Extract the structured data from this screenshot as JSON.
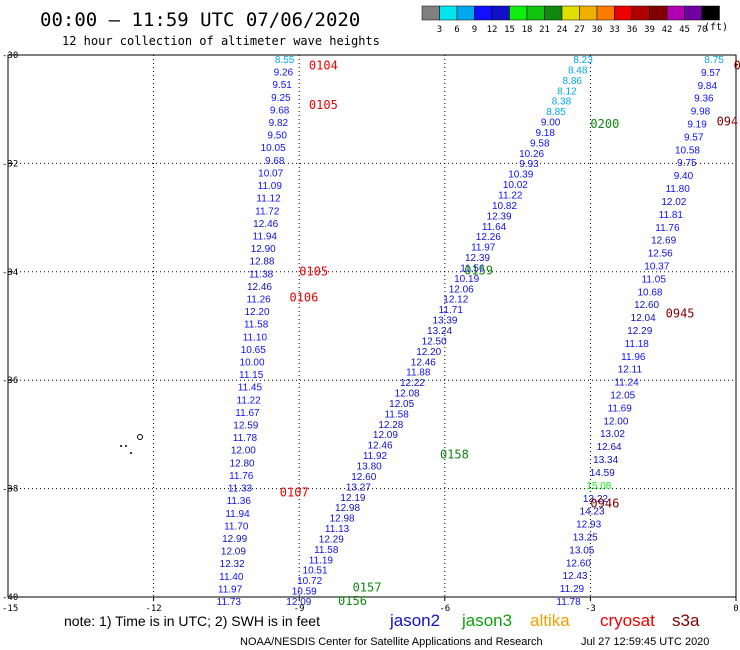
{
  "header": {
    "title": "00:00 – 11:59 UTC 07/06/2020",
    "subtitle": "12 hour collection of altimeter wave heights",
    "units": "(ft)"
  },
  "colorbar": {
    "colors": [
      "#808080",
      "#00e5ee",
      "#00a8f0",
      "#1010ff",
      "#1010c8",
      "#10ee10",
      "#10c410",
      "#108810",
      "#e0e000",
      "#f0b000",
      "#ff7a00",
      "#ee0000",
      "#b00000",
      "#800000",
      "#b000b0",
      "#7000a0",
      "#000000"
    ],
    "ticks": [
      "3",
      "6",
      "9",
      "12",
      "15",
      "18",
      "21",
      "24",
      "27",
      "30",
      "33",
      "36",
      "39",
      "42",
      "45",
      "70"
    ]
  },
  "axes": {
    "x_ticks": [
      {
        "v": -12,
        "label": "-12"
      },
      {
        "v": -9,
        "label": "-9"
      },
      {
        "v": -6,
        "label": "-6"
      },
      {
        "v": -3,
        "label": "-3"
      },
      {
        "v": 0,
        "label": "0"
      }
    ],
    "x_corner": "-15",
    "y_ticks": [
      {
        "v": -30,
        "label": "-30"
      },
      {
        "v": -32,
        "label": "-32"
      },
      {
        "v": -34,
        "label": "-34"
      },
      {
        "v": -36,
        "label": "-36"
      },
      {
        "v": -38,
        "label": "-38"
      },
      {
        "v": -40,
        "label": "-40"
      }
    ]
  },
  "legend": {
    "note": "note:  1) Time is in UTC;  2) SWH is in feet",
    "satellites": [
      {
        "name": "jason2",
        "color": "#1010c8"
      },
      {
        "name": "jason3",
        "color": "#10a010"
      },
      {
        "name": "altika",
        "color": "#f0a000"
      },
      {
        "name": "cryosat",
        "color": "#ee0000"
      },
      {
        "name": "s3a",
        "color": "#800000"
      }
    ]
  },
  "footer": {
    "credit": "NOAA/NESDIS Center for Satellite Applications and Research",
    "timestamp": "Jul 27 12:59:45 UTC 2020"
  },
  "chart_data": {
    "type": "scatter",
    "title": "00:00 – 11:59 UTC 07/06/2020",
    "subtitle": "12 hour collection of altimeter wave heights",
    "xlim": [
      -15,
      0
    ],
    "ylim": [
      -40,
      -30
    ],
    "grid": true,
    "legend_position": "bottom",
    "tracks": [
      {
        "name": "track-a",
        "x_start": -9.1,
        "x_end": -10.2,
        "values": [
          "8.55",
          "9.26",
          "9.51",
          "9.25",
          "9.68",
          "9.82",
          "9.50",
          "10.05",
          "9.68",
          "10.07",
          "11.09",
          "11.12",
          "11.72",
          "12.46",
          "11.94",
          "12.90",
          "12.88",
          "11.38",
          "12.46",
          "11.26",
          "12.20",
          "11.58",
          "11.10",
          "10.65",
          "10.00",
          "11.15",
          "11.45",
          "11.22",
          "11.67",
          "12.59",
          "11.78",
          "12.00",
          "12.80",
          "11.76",
          "11.33",
          "11.36",
          "11.94",
          "11.70",
          "12.99",
          "12.09",
          "12.32",
          "11.40",
          "11.97",
          "11.73"
        ]
      },
      {
        "name": "track-b",
        "x_start": -2.95,
        "x_end": -8.75,
        "values": [
          "8.23",
          "8.48",
          "8.86",
          "8.12",
          "8.38",
          "8.85",
          "9.00",
          "9.18",
          "9.58",
          "10.26",
          "9.93",
          "10.39",
          "10.02",
          "11.22",
          "10.82",
          "12.39",
          "11.64",
          "12.26",
          "11.97",
          "12.39",
          "11.56",
          "10.19",
          "12.06",
          "12.12",
          "11.71",
          "13.39",
          "13.24",
          "12.50",
          "12.20",
          "12.46",
          "11.88",
          "12.22",
          "12.08",
          "12.05",
          "11.58",
          "12.28",
          "12.09",
          "12.46",
          "11.92",
          "13.80",
          "12.60",
          "13.27",
          "12.19",
          "12.98",
          "12.98",
          "11.13",
          "12.29",
          "11.58",
          "11.19",
          "10.51",
          "10.72",
          "10.59",
          "12.09"
        ]
      },
      {
        "name": "track-c",
        "x_start": -0.25,
        "x_end": -3.2,
        "values": [
          "8.75",
          "9.57",
          "9.84",
          "9.36",
          "9.98",
          "9.19",
          "9.57",
          "10.58",
          "9.75",
          "9.40",
          "11.80",
          "12.02",
          "11.81",
          "11.76",
          "12.69",
          "12.56",
          "10.37",
          "11.05",
          "10.68",
          "12.60",
          "12.04",
          "12.29",
          "11.18",
          "11.96",
          "12.11",
          "11.24",
          "12.05",
          "11.69",
          "12.00",
          "13.02",
          "12.64",
          "13.34",
          "14.59",
          "15.08",
          "13.22",
          "14.23",
          "12.93",
          "13.25",
          "13.05",
          "12.60",
          "12.43",
          "11.29",
          "11.78"
        ]
      }
    ],
    "time_labels": [
      {
        "text": "0104",
        "x": -8.8,
        "y": -30.12,
        "color": "#ee0000"
      },
      {
        "text": "0105",
        "x": -8.8,
        "y": -30.85,
        "color": "#ee0000"
      },
      {
        "text": "0105",
        "x": -9.0,
        "y": -33.92,
        "color": "#ee0000"
      },
      {
        "text": "0106",
        "x": -9.2,
        "y": -34.4,
        "color": "#ee0000"
      },
      {
        "text": "0107",
        "x": -9.4,
        "y": -38.0,
        "color": "#ee0000"
      },
      {
        "text": "0200",
        "x": -3.0,
        "y": -31.2,
        "color": "#108810"
      },
      {
        "text": "0159",
        "x": -5.6,
        "y": -33.9,
        "color": "#108810"
      },
      {
        "text": "0158",
        "x": -6.1,
        "y": -37.3,
        "color": "#108810"
      },
      {
        "text": "0157",
        "x": -7.9,
        "y": -39.75,
        "color": "#108810"
      },
      {
        "text": "0156",
        "x": -8.2,
        "y": -40.0,
        "color": "#108810"
      },
      {
        "text": "094",
        "x": -0.4,
        "y": -31.15,
        "color": "#800000"
      },
      {
        "text": "0945",
        "x": -1.45,
        "y": -34.7,
        "color": "#800000"
      },
      {
        "text": "0946",
        "x": -3.0,
        "y": -38.2,
        "color": "#800000"
      },
      {
        "text": "0",
        "x": -0.05,
        "y": -30.12,
        "color": "#800000"
      }
    ]
  }
}
